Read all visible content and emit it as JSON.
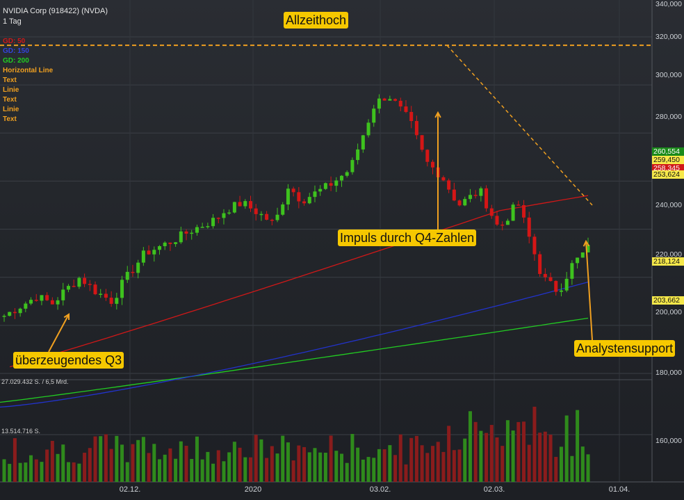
{
  "header": {
    "instrument": "NVIDIA Corp (918422) (NVDA)",
    "interval": "1 Tag"
  },
  "legend": [
    {
      "label": "GD: 50",
      "color": "#d01818"
    },
    {
      "label": "GD: 150",
      "color": "#2233cc"
    },
    {
      "label": "GD: 200",
      "color": "#22cc22"
    },
    {
      "label": "Horizontal Line",
      "color": "#f0a020"
    },
    {
      "label": "Text",
      "color": "#f0a020"
    },
    {
      "label": "Linie",
      "color": "#f0a020"
    },
    {
      "label": "Text",
      "color": "#f0a020"
    },
    {
      "label": "Linie",
      "color": "#f0a020"
    },
    {
      "label": "Text",
      "color": "#f0a020"
    }
  ],
  "annotations": {
    "ath": "Allzeithoch",
    "impulse": "Impuls durch Q4-Zahlen",
    "q3": "überzeugendes Q3",
    "support": "Analystensupport"
  },
  "price_axis": [
    "340,000",
    "320,000",
    "300,000",
    "280,000",
    "240,000",
    "220,000",
    "200,000",
    "180,000",
    "160,000"
  ],
  "price_tags": [
    {
      "text": "260,554",
      "bg": "#1a8a1a",
      "fg": "#ffffff"
    },
    {
      "text": "259,450",
      "bg": "#f6e84a",
      "fg": "#111111"
    },
    {
      "text": "258,345",
      "bg": "#d01818",
      "fg": "#ffffff"
    },
    {
      "text": "253,624",
      "bg": "#f6e84a",
      "fg": "#111111"
    },
    {
      "text": "218,124",
      "bg": "#f6e84a",
      "fg": "#111111"
    },
    {
      "text": "203,662",
      "bg": "#f6e84a",
      "fg": "#111111"
    }
  ],
  "time_axis": [
    "02.12.",
    "2020",
    "03.02.",
    "02.03.",
    "01.04."
  ],
  "volume_axis": {
    "max": "27.029.432 S. / 6,5 Mrd.",
    "mid": "13.514.716 S."
  },
  "colors": {
    "up": "#3ec21e",
    "down": "#d41616",
    "sma50": "#d01818",
    "sma150": "#2233cc",
    "sma200": "#22cc22",
    "ath_line": "#f0a020"
  },
  "chart_data": {
    "type": "candlestick",
    "series": [
      {
        "name": "GD: 50"
      },
      {
        "name": "GD: 150"
      },
      {
        "name": "GD: 200"
      }
    ],
    "ath": 316.5
  }
}
